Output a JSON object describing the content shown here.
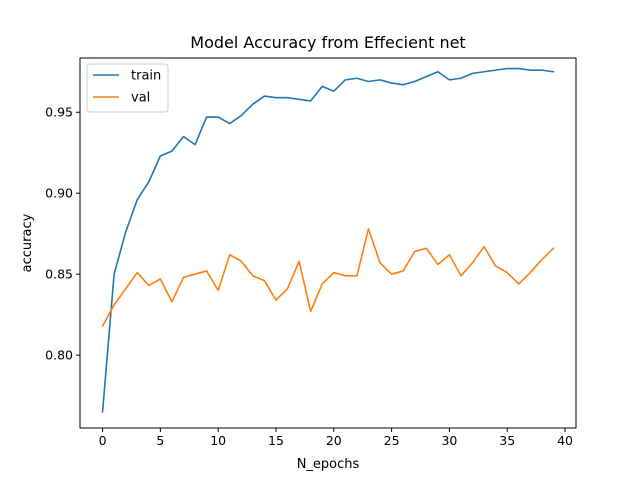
{
  "chart_data": {
    "type": "line",
    "title": "Model Accuracy from Effecient net",
    "xlabel": "N_epochs",
    "ylabel": "accuracy",
    "xlim": [
      -1.95,
      40.95
    ],
    "ylim": [
      0.755,
      0.9835
    ],
    "xticks": [
      0,
      5,
      10,
      15,
      20,
      25,
      30,
      35,
      40
    ],
    "xtick_labels": [
      "0",
      "5",
      "10",
      "15",
      "20",
      "25",
      "30",
      "35",
      "40"
    ],
    "yticks": [
      0.8,
      0.85,
      0.9,
      0.95
    ],
    "ytick_labels": [
      "0.80",
      "0.85",
      "0.90",
      "0.95"
    ],
    "grid": false,
    "legend_position": "upper-left",
    "x": [
      0,
      1,
      2,
      3,
      4,
      5,
      6,
      7,
      8,
      9,
      10,
      11,
      12,
      13,
      14,
      15,
      16,
      17,
      18,
      19,
      20,
      21,
      22,
      23,
      24,
      25,
      26,
      27,
      28,
      29,
      30,
      31,
      32,
      33,
      34,
      35,
      36,
      37,
      38,
      39
    ],
    "series": [
      {
        "name": "train",
        "color": "#1f77b4",
        "values": [
          0.765,
          0.85,
          0.876,
          0.896,
          0.907,
          0.923,
          0.926,
          0.935,
          0.93,
          0.947,
          0.947,
          0.943,
          0.948,
          0.955,
          0.96,
          0.959,
          0.959,
          0.958,
          0.957,
          0.966,
          0.963,
          0.97,
          0.971,
          0.969,
          0.97,
          0.968,
          0.967,
          0.969,
          0.972,
          0.975,
          0.97,
          0.971,
          0.974,
          0.975,
          0.976,
          0.977,
          0.977,
          0.976,
          0.976,
          0.975
        ]
      },
      {
        "name": "val",
        "color": "#ff7f0e",
        "values": [
          0.818,
          0.831,
          0.841,
          0.851,
          0.843,
          0.847,
          0.833,
          0.848,
          0.85,
          0.852,
          0.84,
          0.862,
          0.858,
          0.849,
          0.846,
          0.834,
          0.841,
          0.858,
          0.827,
          0.844,
          0.851,
          0.849,
          0.849,
          0.878,
          0.857,
          0.85,
          0.852,
          0.864,
          0.866,
          0.856,
          0.862,
          0.849,
          0.857,
          0.867,
          0.855,
          0.851,
          0.844,
          0.851,
          0.859,
          0.866
        ]
      }
    ]
  }
}
